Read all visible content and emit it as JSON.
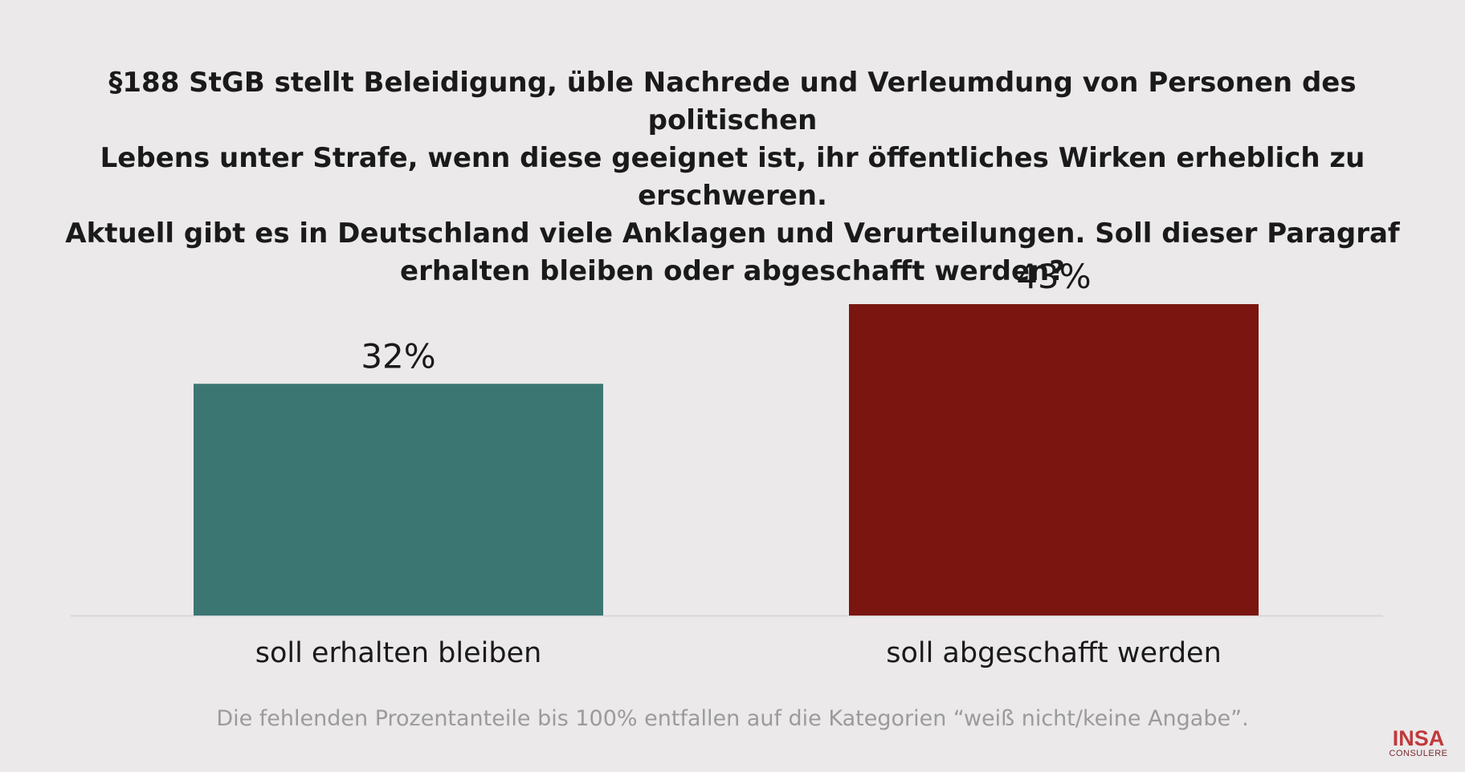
{
  "chart_data": {
    "type": "bar",
    "title_lines": [
      "§188 StGB stellt Beleidigung, üble Nachrede und Verleumdung von Personen des politischen",
      "Lebens unter Strafe, wenn diese geeignet ist, ihr öffentliches Wirken erheblich zu erschweren.",
      "Aktuell gibt es in Deutschland viele Anklagen und Verurteilungen. Soll dieser Paragraf",
      "erhalten bleiben oder abgeschafft werden?"
    ],
    "categories": [
      "soll erhalten bleiben",
      "soll abgeschafft werden"
    ],
    "values": [
      32,
      43
    ],
    "value_labels": [
      "32%",
      "43%"
    ],
    "colors": [
      "#3b7673",
      "#7a150f"
    ],
    "ylim": [
      0,
      43
    ],
    "grid": false,
    "footnote": "Die fehlenden Prozentanteile bis 100% entfallen auf die Kategorien “weiß nicht/keine Angabe”."
  },
  "logo": {
    "main": "INSA",
    "sub": "CONSULERE"
  }
}
